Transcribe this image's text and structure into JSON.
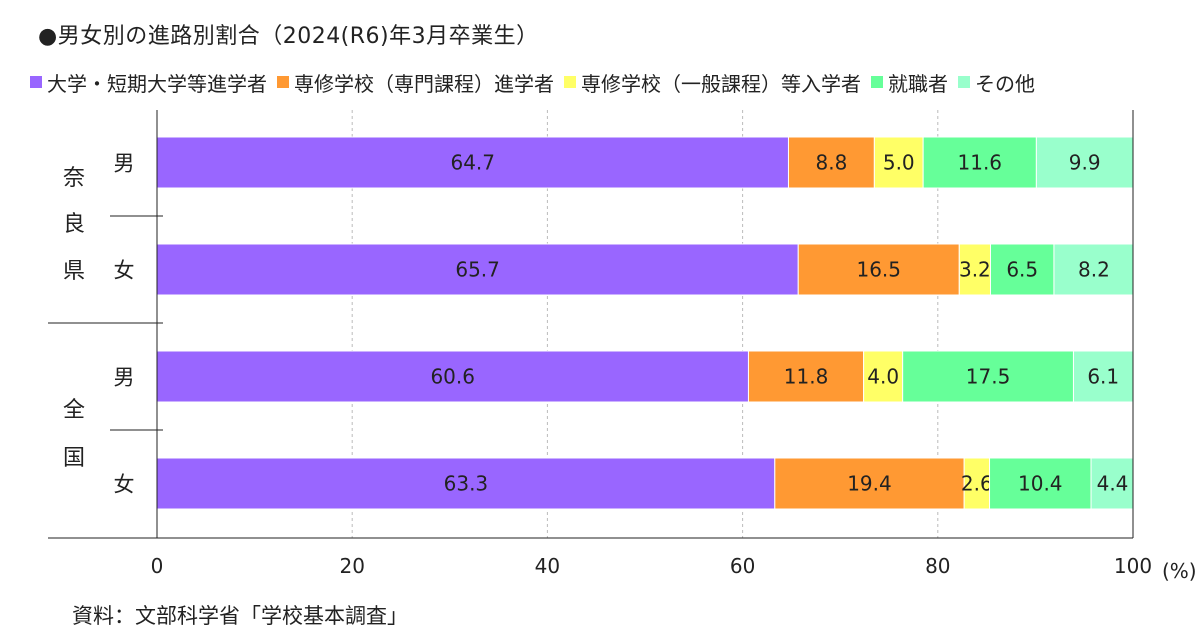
{
  "title": "●男女別の進路別割合（2024(R6)年3月卒業生）",
  "source": "資料：文部科学省「学校基本調査」",
  "chart_data": {
    "type": "bar",
    "orientation": "horizontal",
    "stacked": true,
    "xlim": [
      0,
      100
    ],
    "xticks": [
      "0",
      "20",
      "40",
      "60",
      "80",
      "100"
    ],
    "xunit": "(%)",
    "grid": "vertical dashed",
    "legend_position": "top-left",
    "groups": [
      {
        "label_chars": [
          "奈",
          "良",
          "県"
        ],
        "rows": [
          "男",
          "女"
        ]
      },
      {
        "label_chars": [
          "全",
          "国"
        ],
        "rows": [
          "男",
          "女"
        ]
      }
    ],
    "categories": [
      "男",
      "女",
      "男",
      "女"
    ],
    "series": [
      {
        "name": "大学・短期大学等進学者",
        "color": "#9966ff",
        "values": [
          64.7,
          65.7,
          60.6,
          63.3
        ]
      },
      {
        "name": "専修学校（専門課程）進学者",
        "color": "#ff9933",
        "values": [
          8.8,
          16.5,
          11.8,
          19.4
        ]
      },
      {
        "name": "専修学校（一般課程）等入学者",
        "color": "#ffff66",
        "values": [
          5.0,
          3.2,
          4.0,
          2.6
        ]
      },
      {
        "name": "就職者",
        "color": "#66ff99",
        "values": [
          11.6,
          6.5,
          17.5,
          10.4
        ]
      },
      {
        "name": "その他",
        "color": "#99ffcc",
        "values": [
          9.9,
          8.2,
          6.1,
          4.4
        ]
      }
    ]
  }
}
